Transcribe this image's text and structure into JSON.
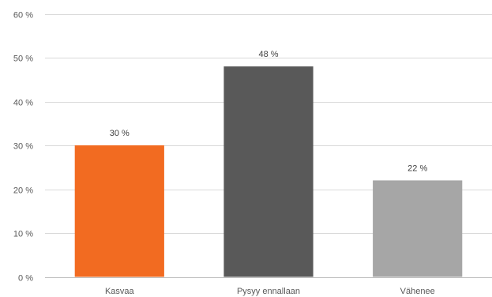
{
  "chart_data": {
    "type": "bar",
    "categories": [
      "Kasvaa",
      "Pysyy ennallaan",
      "Vähenee"
    ],
    "values": [
      30,
      48,
      22
    ],
    "data_labels": [
      "30 %",
      "48 %",
      "22 %"
    ],
    "colors": [
      "#f26b21",
      "#595959",
      "#a6a6a6"
    ],
    "ylim": [
      0,
      60
    ],
    "y_ticks": [
      0,
      10,
      20,
      30,
      40,
      50,
      60
    ],
    "y_tick_labels": [
      "0 %",
      "10 %",
      "20 %",
      "30 %",
      "40 %",
      "50 %",
      "60 %"
    ],
    "gridlines": true,
    "gridline_color": "#d9d9d9",
    "legend": "none"
  }
}
